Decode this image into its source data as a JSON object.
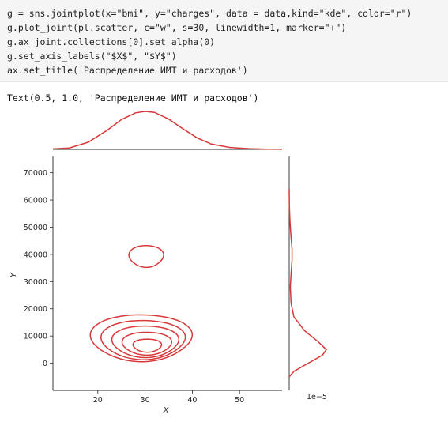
{
  "code_cell": {
    "lines": [
      "g = sns.jointplot(x=\"bmi\", y=\"charges\", data = data,kind=\"kde\", color=\"r\")",
      "g.plot_joint(pl.scatter, c=\"w\", s=30, linewidth=1, marker=\"+\")",
      "g.ax_joint.collections[0].set_alpha(0)",
      "g.set_axis_labels(\"$X$\", \"$Y$\")",
      "ax.set_title('Распределение ИМТ и расходов')"
    ]
  },
  "output": {
    "text": "Text(0.5, 1.0, 'Распределение ИМТ и расходов')"
  },
  "colors": {
    "kde": "#d9383a",
    "code_bg": "#f5f5f5"
  },
  "chart_data": {
    "type": "kde-joint",
    "xlabel": "X",
    "ylabel": "Y",
    "xlim": [
      10.5,
      59
    ],
    "ylim": [
      -10000,
      76000
    ],
    "x_ticks": [
      20,
      30,
      40,
      50
    ],
    "y_ticks": [
      0,
      10000,
      20000,
      30000,
      40000,
      50000,
      60000,
      70000
    ],
    "marginal_y_scale_label": "1e−5",
    "marginal_x_density": [
      [
        10.5,
        0.001
      ],
      [
        14,
        0.003
      ],
      [
        18,
        0.015
      ],
      [
        22,
        0.04
      ],
      [
        25,
        0.062
      ],
      [
        28,
        0.076
      ],
      [
        30,
        0.079
      ],
      [
        32,
        0.077
      ],
      [
        35,
        0.063
      ],
      [
        38,
        0.043
      ],
      [
        41,
        0.024
      ],
      [
        44,
        0.011
      ],
      [
        48,
        0.004
      ],
      [
        52,
        0.0015
      ],
      [
        56,
        0.0005
      ],
      [
        59,
        0.0002
      ]
    ],
    "marginal_y_density": [
      [
        -5000,
        0.0
      ],
      [
        -3000,
        0.5
      ],
      [
        0,
        2.0
      ],
      [
        3000,
        3.5
      ],
      [
        5000,
        3.9
      ],
      [
        8000,
        3.0
      ],
      [
        12000,
        1.6
      ],
      [
        17000,
        0.5
      ],
      [
        22000,
        0.2
      ],
      [
        28000,
        0.12
      ],
      [
        33000,
        0.2
      ],
      [
        38000,
        0.3
      ],
      [
        42000,
        0.3
      ],
      [
        46000,
        0.2
      ],
      [
        52000,
        0.08
      ],
      [
        58000,
        0.02
      ],
      [
        64000,
        0.0
      ]
    ],
    "contours": [
      {
        "level": 1,
        "center": [
          30.5,
          6500
        ],
        "rx": 3.0,
        "ry": 2400
      },
      {
        "level": 2,
        "center": [
          30.5,
          7200
        ],
        "rx": 5.2,
        "ry": 4200
      },
      {
        "level": 3,
        "center": [
          30.3,
          7800
        ],
        "rx": 7.0,
        "ry": 5800
      },
      {
        "level": 4,
        "center": [
          30.0,
          8300
        ],
        "rx": 8.8,
        "ry": 7200
      },
      {
        "level": 5,
        "center": [
          29.8,
          8800
        ],
        "rx": 10.6,
        "ry": 8600
      },
      {
        "level": 6,
        "center": [
          30.5,
          39000
        ],
        "rx": 3.6,
        "ry": 4000
      }
    ]
  }
}
